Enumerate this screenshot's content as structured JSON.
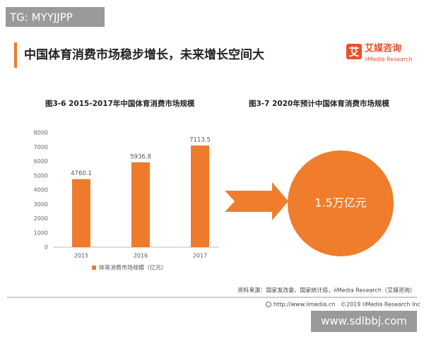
{
  "watermark_top": "TG: MYYJJPP",
  "header": {
    "title": "中国体育消费市场稳步增长，未来增长空间大",
    "logo_mark": "艾",
    "logo_name": "艾媒咨询",
    "logo_sub": "iiMedia Research"
  },
  "chart_data": {
    "type": "bar",
    "title": "图3-6 2015-2017年中国体育消费市场规模",
    "categories": [
      "2015",
      "2016",
      "2017"
    ],
    "series": [
      {
        "name": "体育消费市场规模（亿元）",
        "color": "#ee7b2c",
        "values": [
          4760.1,
          5936.8,
          7113.5
        ]
      }
    ],
    "ylim": [
      0,
      8000
    ],
    "yticks": [
      0,
      1000,
      2000,
      3000,
      4000,
      5000,
      6000,
      7000,
      8000
    ],
    "grid": false
  },
  "forecast": {
    "title": "图3-7 2020年预计中国体育消费市场规模",
    "label": "1.5万亿元",
    "color": "#ef7d2b"
  },
  "footer": {
    "source": "资料来源：国家发改委，国家统计局，iiMedia Research（艾媒咨询）",
    "url": "http://www.iimedia.cn",
    "copyright": "©2019  iiMedia Research  Inc"
  },
  "watermark_bottom": "www.sdlbbj.com"
}
